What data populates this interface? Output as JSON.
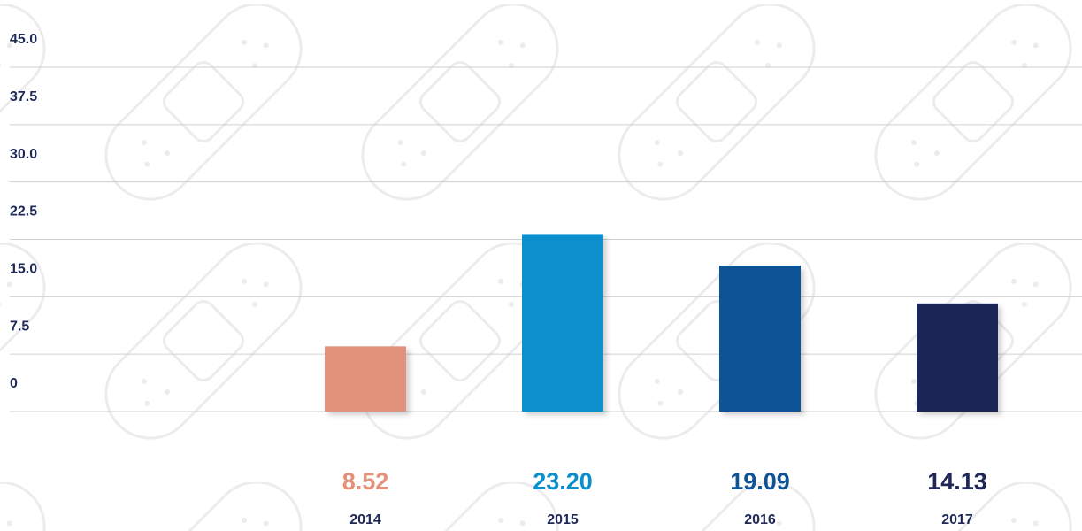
{
  "chart_data": {
    "type": "bar",
    "categories": [
      "2014",
      "2015",
      "2016",
      "2017"
    ],
    "values": [
      8.52,
      23.2,
      19.09,
      14.13
    ],
    "value_labels": [
      "8.52",
      "23.20",
      "19.09",
      "14.13"
    ],
    "colors": [
      "#e2917a",
      "#088fcc",
      "#0d5395",
      "#1f2757"
    ],
    "ylim": [
      0,
      45
    ],
    "yticks": [
      0,
      7.5,
      {
        "value": 15,
        "label": "15.0"
      },
      22.5,
      {
        "value": 30,
        "label": "30.0"
      },
      37.5,
      {
        "value": 45,
        "label": "45.0"
      }
    ],
    "grid": true
  }
}
